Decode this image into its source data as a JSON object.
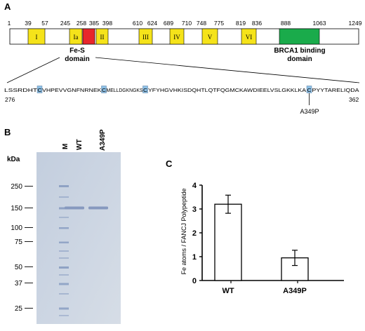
{
  "panel_a": {
    "label": "A",
    "positions": [
      "1",
      "39",
      "57",
      "245",
      "258",
      "385",
      "398",
      "610",
      "624",
      "689",
      "710",
      "748",
      "775",
      "819",
      "836",
      "888",
      "1063",
      "1249"
    ],
    "motifs": [
      "I",
      "Ia",
      "II",
      "III",
      "IV",
      "V",
      "VI"
    ],
    "fes_label": [
      "Fe-S",
      "domain"
    ],
    "brca1_label": [
      "BRCA1 binding",
      "domain"
    ],
    "seq_segments": [
      "LSSRDHT",
      "VHPEVVGNFNRNEK",
      "MELLDGKNGKS",
      "YFYHGVHKISDQHTLQTFQGMCKAWDIEELVSLGKKLKA",
      "PYYTARELIQDA"
    ],
    "seq_marks": [
      "C",
      "C",
      "C",
      "C"
    ],
    "seq_start": "276",
    "seq_end": "362",
    "mutation_label": "A349P",
    "colors": {
      "motif": "#f5e31a",
      "fes": "#e8262b",
      "brca1": "#1aab4b",
      "seq_box": "#8dc0e6"
    }
  },
  "panel_b": {
    "label": "B",
    "unit": "kDa",
    "lane_labels": [
      "M",
      "WT",
      "A349P"
    ],
    "markers": [
      "250",
      "150",
      "100",
      "75",
      "50",
      "37",
      "25"
    ]
  },
  "panel_c": {
    "label": "C",
    "ylabel": "Fe atoms / FANCJ Polypeptide",
    "chart_data": {
      "type": "bar",
      "categories": [
        "WT",
        "A349P"
      ],
      "values": [
        3.2,
        0.95
      ],
      "errors": [
        0.38,
        0.32
      ],
      "ylim": [
        0,
        4
      ],
      "yticks": [
        "0",
        "1",
        "2",
        "3",
        "4"
      ],
      "ylabel": "Fe atoms / FANCJ Polypeptide",
      "xlabel": "",
      "title": "",
      "grid": false,
      "bar_color": "#ffffff"
    }
  }
}
